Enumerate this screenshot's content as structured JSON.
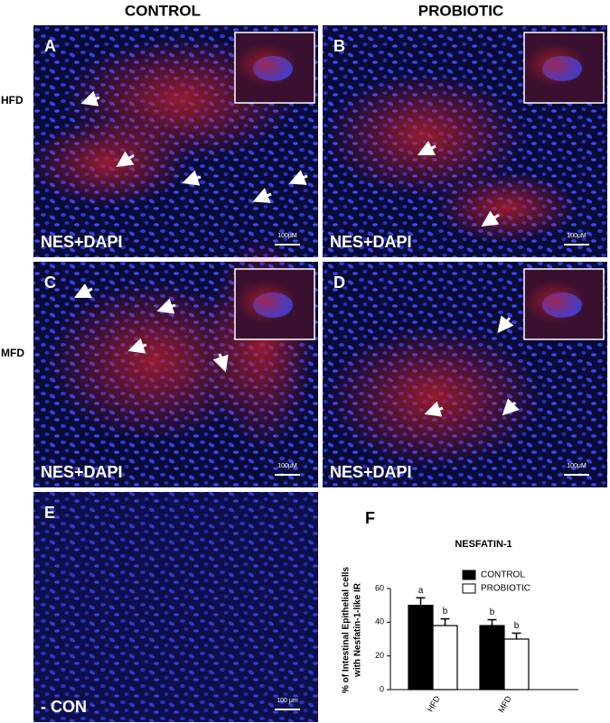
{
  "columns": [
    "CONTROL",
    "PROBIOTIC"
  ],
  "rows": [
    "HFD",
    "MFD"
  ],
  "panels": [
    {
      "label": "A",
      "stain": "NES+DAPI",
      "scale": "100μM"
    },
    {
      "label": "B",
      "stain": "NES+DAPI",
      "scale": "100μM"
    },
    {
      "label": "C",
      "stain": "NES+DAPI",
      "scale": "100μM"
    },
    {
      "label": "D",
      "stain": "NES+DAPI",
      "scale": "100μM"
    },
    {
      "label": "E",
      "stain": "- CON",
      "scale": "100 μm"
    }
  ],
  "chart_data": {
    "type": "bar",
    "panel_label": "F",
    "title": "NESFATIN-1",
    "y_label": [
      "% of Intestinal Epithelial cells",
      "with Nesfatin-1-like IR"
    ],
    "categories": [
      "HFD",
      "MFD"
    ],
    "series": [
      {
        "name": "CONTROL",
        "color": "#000000",
        "values": [
          50,
          38
        ],
        "errors": [
          4.5,
          3.5
        ],
        "letters": [
          "a",
          "b"
        ]
      },
      {
        "name": "PROBIOTIC",
        "color": "#ffffff",
        "values": [
          38,
          30
        ],
        "errors": [
          4,
          3.5
        ],
        "letters": [
          "b",
          "b"
        ]
      }
    ],
    "ylim": [
      0,
      60
    ],
    "yticks": [
      0,
      20,
      40,
      60
    ],
    "legend": "upper right"
  }
}
